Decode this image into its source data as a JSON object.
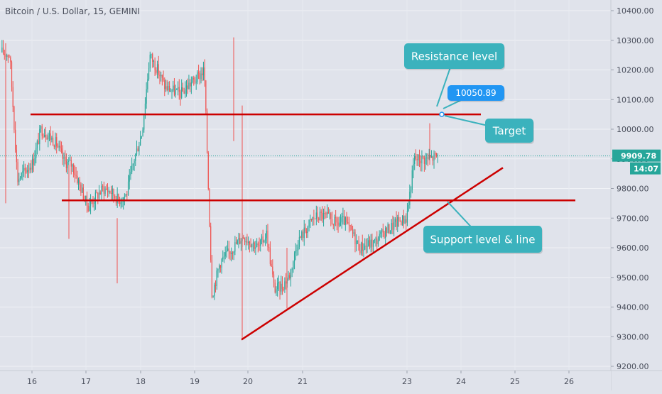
{
  "header": {
    "symbol_title": "Bitcoin / U.S. Dollar, 15, GEMINI"
  },
  "price_axis": {
    "ticks": [
      "10400.00",
      "10300.00",
      "10200.00",
      "10100.00",
      "10000.00",
      "9900.00",
      "9800.00",
      "9700.00",
      "9600.00",
      "9500.00",
      "9400.00",
      "9300.00",
      "9200.00"
    ],
    "last_price": "9909.78",
    "countdown": "14:07"
  },
  "time_axis": {
    "ticks": [
      "16",
      "17",
      "18",
      "19",
      "20",
      "21",
      "23",
      "24",
      "25",
      "26"
    ]
  },
  "annotations": {
    "resistance_label": "Resistance level",
    "target_price": "10050.89",
    "target_label": "Target",
    "support_label": "Support level & line"
  },
  "colors": {
    "background": "#e0e3eb",
    "up_candle": "#26a69a",
    "down_candle": "#ef5350",
    "trendline": "#cc0000",
    "callout": "#3bb2bd",
    "price_badge": "#2196f3",
    "last_price_badge": "#26a69a"
  },
  "chart_data": {
    "type": "line",
    "title": "Bitcoin / U.S. Dollar, 15, GEMINI",
    "series": [
      {
        "values": [
          10260,
          10250,
          9830,
          9860,
          9890,
          10000,
          9980,
          9950,
          9890,
          9880,
          9810,
          9740,
          9770,
          9800,
          9790,
          9760,
          9780,
          9900,
          9990,
          10250,
          10200,
          10140,
          10130,
          10120,
          10150,
          10170,
          10200,
          9440,
          9550,
          9580,
          9610,
          9640,
          9620,
          9600,
          9650,
          9460,
          9470,
          9510,
          9620,
          9660,
          9700,
          9710,
          9700,
          9680,
          9690,
          9650,
          9600,
          9610,
          9620,
          9650,
          9670,
          9690,
          9700,
          9900,
          9900,
          9900,
          9910
        ]
      }
    ],
    "ylim": [
      9200,
      10400
    ],
    "xlabel": "",
    "ylabel": "",
    "grid": true,
    "lines": [
      {
        "kind": "resistance",
        "price": 10050
      },
      {
        "kind": "support",
        "price": 9760
      },
      {
        "kind": "rising trendline",
        "from": 9290,
        "to": 9870
      }
    ]
  }
}
